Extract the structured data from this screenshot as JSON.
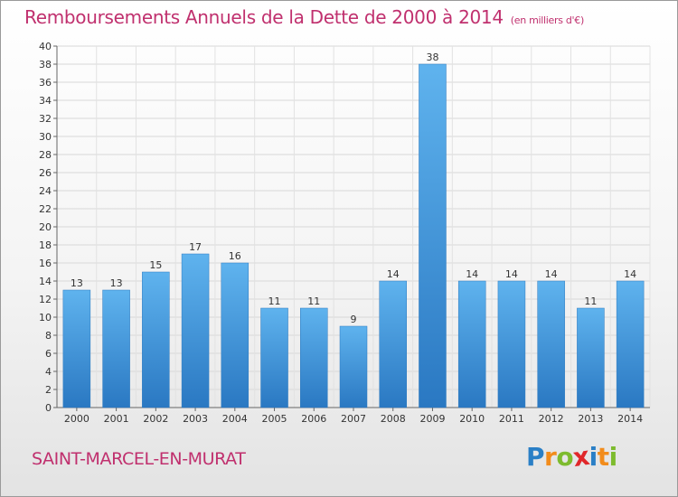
{
  "chart_data": {
    "type": "bar",
    "title": "Remboursements Annuels de la Dette de 2000 à 2014",
    "subtitle": "(en milliers d'€)",
    "categories": [
      "2000",
      "2001",
      "2002",
      "2003",
      "2004",
      "2005",
      "2006",
      "2007",
      "2008",
      "2009",
      "2010",
      "2011",
      "2012",
      "2013",
      "2014"
    ],
    "values": [
      13,
      13,
      15,
      17,
      16,
      11,
      11,
      9,
      14,
      38,
      14,
      14,
      14,
      11,
      14
    ],
    "ylim": [
      0,
      40
    ],
    "ytick_step": 2,
    "grid": true,
    "bar_color": "#3a93d8"
  },
  "commune": "SAINT-MARCEL-EN-MURAT",
  "logo": {
    "text": "Proxiti",
    "letters": [
      {
        "ch": "P",
        "color": "#2a7fc6"
      },
      {
        "ch": "r",
        "color": "#f28c1b"
      },
      {
        "ch": "o",
        "color": "#7dbb2e"
      },
      {
        "ch": "x",
        "color": "#e0272a"
      },
      {
        "ch": "i",
        "color": "#2a7fc6"
      },
      {
        "ch": "t",
        "color": "#f28c1b"
      },
      {
        "ch": "i",
        "color": "#7dbb2e"
      }
    ]
  }
}
